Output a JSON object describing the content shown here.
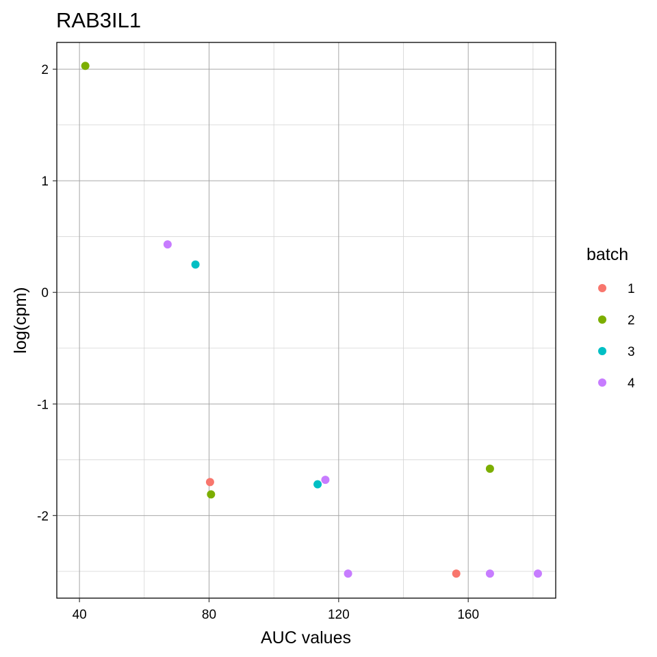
{
  "chart_data": {
    "type": "scatter",
    "title": "RAB3IL1",
    "xlabel": "AUC values",
    "ylabel": "log(cpm)",
    "xlim": [
      33,
      187
    ],
    "ylim": [
      -2.74,
      2.24
    ],
    "x_ticks": [
      40,
      80,
      120,
      160
    ],
    "x_tick_labels": [
      "40",
      "80",
      "120",
      "160"
    ],
    "x_minor_ticks": [
      60,
      100,
      140,
      180
    ],
    "y_ticks": [
      -2,
      -1,
      0,
      1,
      2
    ],
    "y_tick_labels": [
      "-2",
      "-1",
      "0",
      "1",
      "2"
    ],
    "y_minor_ticks": [
      -2.5,
      -1.5,
      -0.5,
      0.5,
      1.5
    ],
    "grid": true,
    "legend": {
      "title": "batch",
      "placement": "right",
      "entries": [
        {
          "label": "1",
          "color": "#F8766D"
        },
        {
          "label": "2",
          "color": "#7CAE00"
        },
        {
          "label": "3",
          "color": "#00BFC4"
        },
        {
          "label": "4",
          "color": "#C77CFF"
        }
      ]
    },
    "series": [
      {
        "batch": "1",
        "color": "#F8766D",
        "points": [
          [
            80.3,
            -1.7
          ],
          [
            156.3,
            -2.52
          ]
        ]
      },
      {
        "batch": "2",
        "color": "#7CAE00",
        "points": [
          [
            41.8,
            2.03
          ],
          [
            80.6,
            -1.81
          ],
          [
            166.7,
            -1.58
          ]
        ]
      },
      {
        "batch": "3",
        "color": "#00BFC4",
        "points": [
          [
            75.8,
            0.25
          ],
          [
            113.5,
            -1.72
          ]
        ]
      },
      {
        "batch": "4",
        "color": "#C77CFF",
        "points": [
          [
            67.2,
            0.43
          ],
          [
            115.9,
            -1.68
          ],
          [
            122.9,
            -2.52
          ],
          [
            166.7,
            -2.52
          ],
          [
            181.5,
            -2.52
          ]
        ]
      }
    ]
  }
}
